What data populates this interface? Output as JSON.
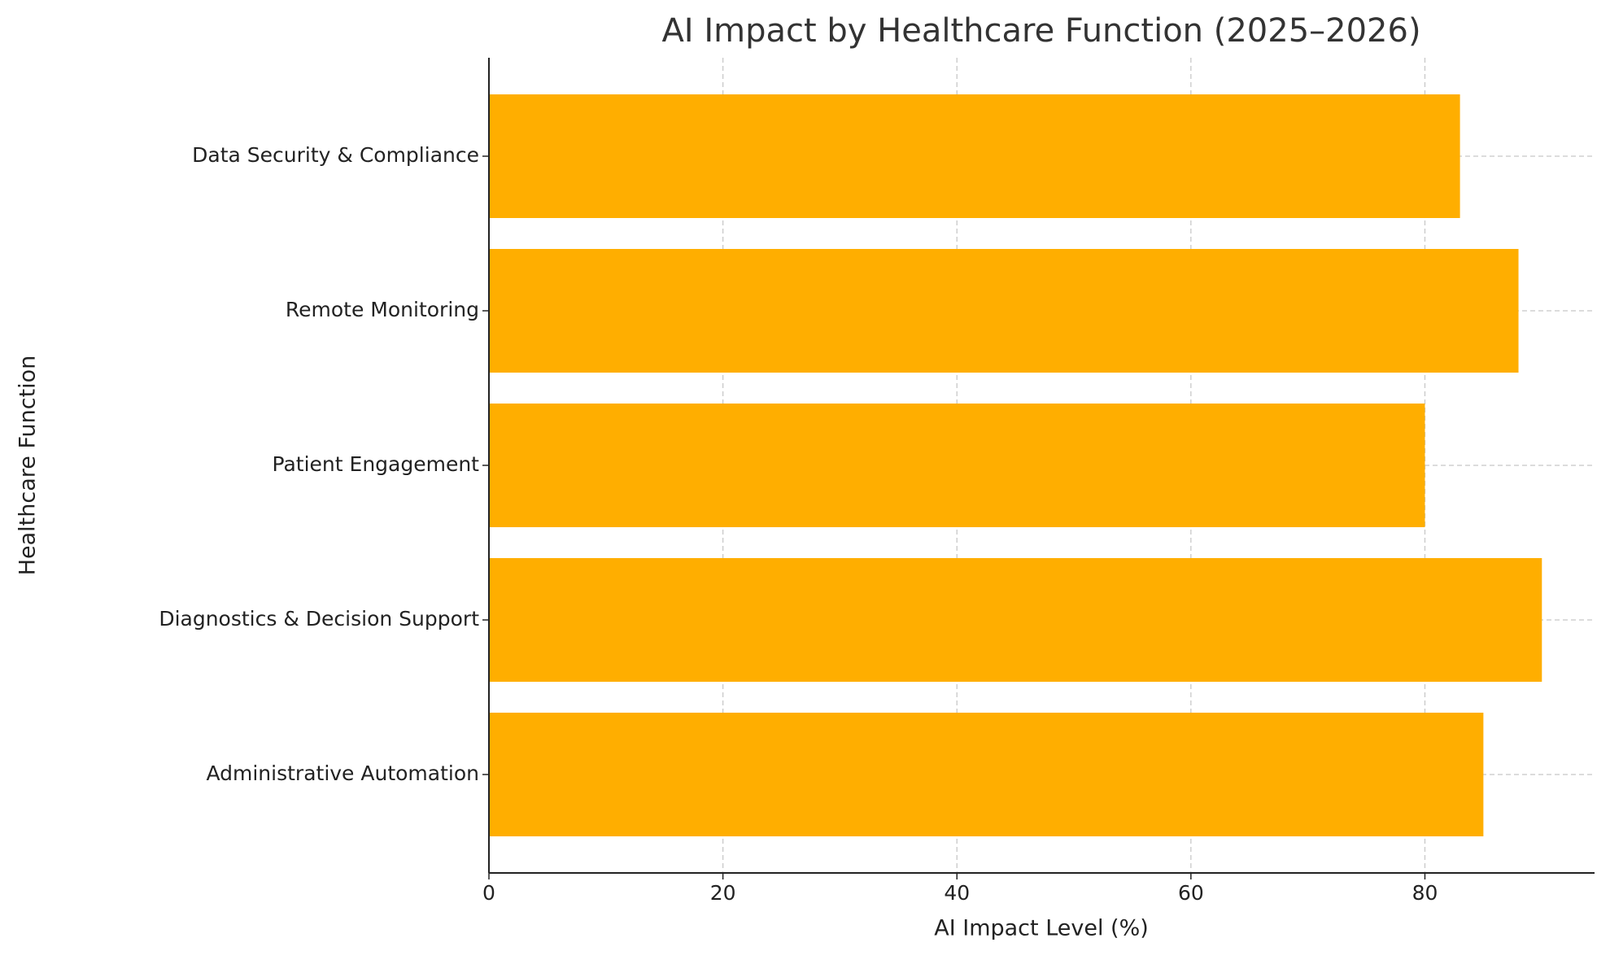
{
  "chart_data": {
    "type": "barh",
    "title": "AI Impact by Healthcare Function (2025–2026)",
    "x_label": "AI Impact Level (%)",
    "y_label": "Healthcare Function",
    "categories": [
      "Administrative Automation",
      "Diagnostics & Decision Support",
      "Patient Engagement",
      "Remote Monitoring",
      "Data Security & Compliance"
    ],
    "values": [
      85,
      90,
      80,
      88,
      83
    ],
    "color": "#FFAE00",
    "xlim": [
      0,
      94.5
    ],
    "xticks": [
      0,
      20,
      40,
      60,
      80
    ],
    "grid": true
  }
}
